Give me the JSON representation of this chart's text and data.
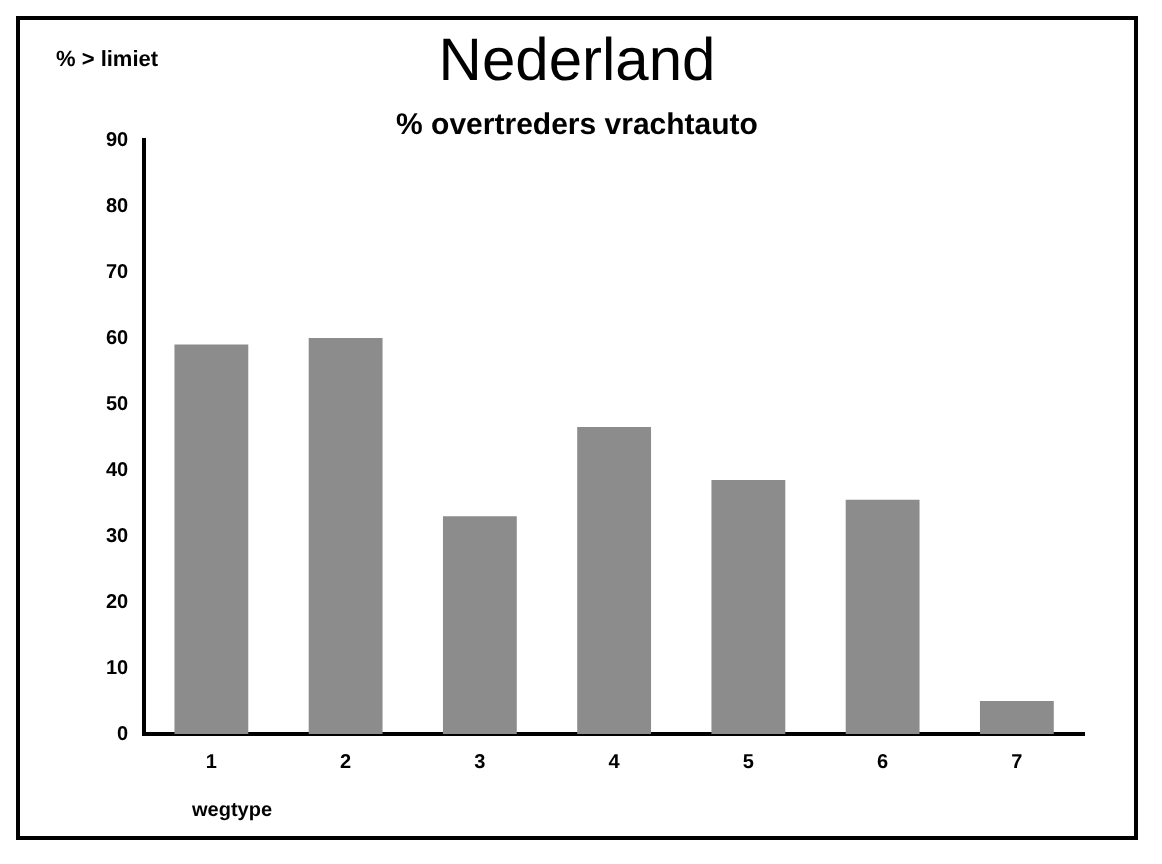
{
  "chart_data": {
    "type": "bar",
    "title": "Nederland",
    "subtitle": "% overtreders vrachtauto",
    "xlabel": "wegtype",
    "ylabel": "% > limiet",
    "categories": [
      "1",
      "2",
      "3",
      "4",
      "5",
      "6",
      "7"
    ],
    "values": [
      59,
      60,
      33,
      46.5,
      38.5,
      35.5,
      5
    ],
    "color": "#8c8c8c",
    "ylim": [
      0,
      90
    ],
    "yticks": [
      0,
      10,
      20,
      30,
      40,
      50,
      60,
      70,
      80,
      90
    ],
    "grid": false,
    "legend": false
  }
}
